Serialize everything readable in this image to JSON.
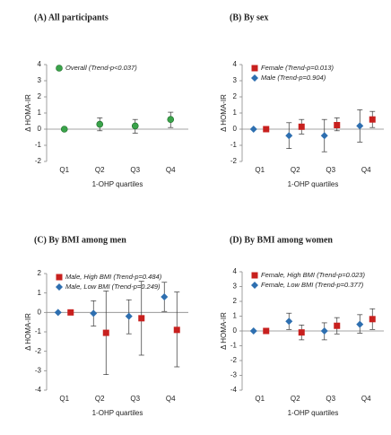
{
  "chart_data": [
    {
      "type": "errorbar",
      "title": "(A) All participants",
      "ylabel": "Δ HOMA-IR",
      "xlabel": "1-OHP quartiles",
      "categories": [
        "Q1",
        "Q2",
        "Q3",
        "Q4"
      ],
      "ylim": [
        -2,
        4
      ],
      "yticks": [
        -2,
        -1,
        0,
        1,
        2,
        3,
        4
      ],
      "series": [
        {
          "name": "Overall (Trend-p<0.037)",
          "color": "#3aa34a",
          "marker": "circle",
          "values": [
            0,
            0.3,
            0.2,
            0.6
          ],
          "lower": [
            0,
            -0.1,
            -0.25,
            0.1
          ],
          "upper": [
            0,
            0.7,
            0.6,
            1.05
          ]
        }
      ]
    },
    {
      "type": "errorbar",
      "title": "(B) By sex",
      "ylabel": "Δ HOMA-IR",
      "xlabel": "1-OHP quartiles",
      "categories": [
        "Q1",
        "Q2",
        "Q3",
        "Q4"
      ],
      "ylim": [
        -2,
        4
      ],
      "yticks": [
        -2,
        -1,
        0,
        1,
        2,
        3,
        4
      ],
      "series": [
        {
          "name": "Female (Trend-p=0.013)",
          "color": "#c8201e",
          "marker": "square",
          "values": [
            0,
            0.15,
            0.25,
            0.6
          ],
          "lower": [
            0,
            -0.3,
            -0.1,
            0.1
          ],
          "upper": [
            0,
            0.6,
            0.7,
            1.1
          ]
        },
        {
          "name": "Male (Trend-p=0.904)",
          "color": "#2e6fb0",
          "marker": "diamond",
          "values": [
            0,
            -0.4,
            -0.4,
            0.2
          ],
          "lower": [
            0,
            -1.2,
            -1.4,
            -0.8
          ],
          "upper": [
            0,
            0.4,
            0.6,
            1.2
          ]
        }
      ]
    },
    {
      "type": "errorbar",
      "title": "(C) By BMI among men",
      "ylabel": "Δ HOMA-IR",
      "xlabel": "1-OHP quartiles",
      "categories": [
        "Q1",
        "Q2",
        "Q3",
        "Q4"
      ],
      "ylim": [
        -4,
        2
      ],
      "yticks": [
        -4,
        -3,
        -2,
        -1,
        0,
        1,
        2
      ],
      "series": [
        {
          "name": "Male, High BMI (Trend-p=0.484)",
          "color": "#c8201e",
          "marker": "square",
          "values": [
            0,
            -1.05,
            -0.3,
            -0.9
          ],
          "lower": [
            0,
            -3.2,
            -2.2,
            -2.8
          ],
          "upper": [
            0,
            1.1,
            1.6,
            1.05
          ]
        },
        {
          "name": "Male, Low BMI (Trend-p=0.249)",
          "color": "#2e6fb0",
          "marker": "diamond",
          "values": [
            0,
            -0.05,
            -0.2,
            0.8
          ],
          "lower": [
            0,
            -0.7,
            -1.1,
            0.05
          ],
          "upper": [
            0,
            0.6,
            0.65,
            1.55
          ]
        }
      ]
    },
    {
      "type": "errorbar",
      "title": "(D) By BMI among women",
      "ylabel": "Δ HOMA-IR",
      "xlabel": "1-OHP quartiles",
      "categories": [
        "Q1",
        "Q2",
        "Q3",
        "Q4"
      ],
      "ylim": [
        -4,
        4
      ],
      "yticks": [
        -4,
        -3,
        -2,
        -1,
        0,
        1,
        2,
        3,
        4
      ],
      "series": [
        {
          "name": "Female, High BMI (Trend-p=0.023)",
          "color": "#c8201e",
          "marker": "square",
          "values": [
            0,
            -0.1,
            0.35,
            0.8
          ],
          "lower": [
            0,
            -0.6,
            -0.2,
            0.1
          ],
          "upper": [
            0,
            0.4,
            0.9,
            1.5
          ]
        },
        {
          "name": "Female, Low BMI (Trend-p=0.377)",
          "color": "#2e6fb0",
          "marker": "diamond",
          "values": [
            0,
            0.65,
            0,
            0.45
          ],
          "lower": [
            0,
            0.1,
            -0.6,
            -0.15
          ],
          "upper": [
            0,
            1.2,
            0.55,
            1.1
          ]
        }
      ]
    }
  ]
}
